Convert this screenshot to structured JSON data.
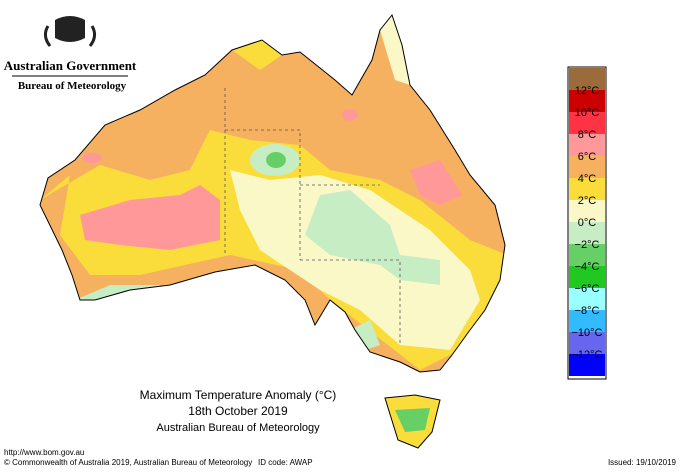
{
  "header": {
    "government": "Australian Government",
    "agency": "Bureau of Meteorology"
  },
  "title": {
    "line1": "Maximum Temperature Anomaly (°C)",
    "line2": "18th October 2019",
    "line3": "Australian Bureau of Meteorology"
  },
  "legend": {
    "colors": [
      "#9c6b3c",
      "#cc0000",
      "#ff3344",
      "#ff9999",
      "#f5b060",
      "#fadd3a",
      "#fbf8c8",
      "#c6edc4",
      "#66d066",
      "#22c822",
      "#99ffff",
      "#33bbff",
      "#6666ee",
      "#0000ff"
    ],
    "labels": [
      "12°C",
      "10°C",
      "8°C",
      "6°C",
      "4°C",
      "2°C",
      "0°C",
      "−2°C",
      "−4°C",
      "−6°C",
      "−8°C",
      "−10°C",
      "−12°C"
    ]
  },
  "footer": {
    "url": "http://www.bom.gov.au",
    "copyright": "© Commonwealth of Australia 2019, Australian Bureau of Meteorology",
    "id": "ID code: AWAP",
    "issued": "Issued: 19/10/2019"
  }
}
